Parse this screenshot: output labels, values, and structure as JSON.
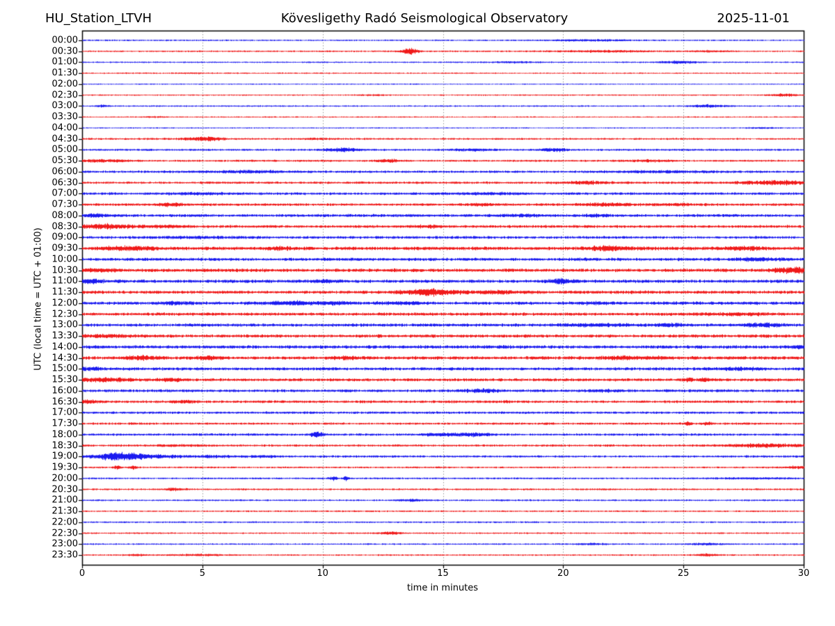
{
  "header": {
    "station": "HU_Station_LTVH",
    "observatory": "Kövesligethy Radó Seismological Observatory",
    "date": "2025-11-01"
  },
  "axes": {
    "ylabel": "UTC (local time = UTC + 01:00)",
    "xlabel": "time in minutes"
  },
  "colors": {
    "trace_blue": "#0000ee",
    "trace_red": "#ee0000",
    "grid": "#999999",
    "frame": "#000000",
    "text": "#000000",
    "background": "#ffffff"
  },
  "chart_data": {
    "type": "line",
    "subtype": "helicorder-seismogram",
    "title": "HU_Station_LTVH — Kövesligethy Radó Seismological Observatory — 2025-11-01",
    "xlabel": "time in minutes",
    "ylabel": "UTC (local time = UTC + 01:00)",
    "x_min": 0,
    "x_max": 30,
    "x_ticks": [
      0,
      5,
      10,
      15,
      20,
      25,
      30
    ],
    "minutes_per_line": 30,
    "grid": "vertical-dotted-at-5-min",
    "legend": "none",
    "line_colors_alternate": [
      "blue",
      "red"
    ],
    "events_format": "[start_minute, peak_amplitude_px, gaussian_width_min]",
    "rows": [
      {
        "label": "00:00",
        "color": "blue",
        "noise": 0.7,
        "events": [
          [
            21.0,
            0.9,
            1.2
          ]
        ]
      },
      {
        "label": "00:30",
        "color": "red",
        "noise": 0.75,
        "events": [
          [
            13.6,
            3.6,
            0.25
          ],
          [
            21.8,
            1.1,
            1.2
          ],
          [
            26.2,
            0.8,
            0.6
          ]
        ]
      },
      {
        "label": "01:00",
        "color": "blue",
        "noise": 0.7,
        "events": [
          [
            18.0,
            0.7,
            0.8
          ],
          [
            24.8,
            1.8,
            0.5
          ]
        ]
      },
      {
        "label": "01:30",
        "color": "red",
        "noise": 0.65,
        "events": [
          [
            4.5,
            0.5,
            0.5
          ]
        ]
      },
      {
        "label": "02:00",
        "color": "blue",
        "noise": 0.55,
        "events": []
      },
      {
        "label": "02:30",
        "color": "red",
        "noise": 0.65,
        "events": [
          [
            12.0,
            0.6,
            0.5
          ],
          [
            29.2,
            1.8,
            0.4
          ]
        ]
      },
      {
        "label": "03:00",
        "color": "blue",
        "noise": 0.7,
        "events": [
          [
            0.8,
            1.2,
            0.15
          ],
          [
            26.0,
            1.6,
            0.5
          ]
        ]
      },
      {
        "label": "03:30",
        "color": "red",
        "noise": 0.6,
        "events": [
          [
            3.0,
            0.8,
            0.3
          ]
        ]
      },
      {
        "label": "04:00",
        "color": "blue",
        "noise": 0.6,
        "events": [
          [
            28.3,
            0.8,
            0.4
          ]
        ]
      },
      {
        "label": "04:30",
        "color": "red",
        "noise": 0.85,
        "events": [
          [
            4.6,
            1.2,
            0.4
          ],
          [
            5.3,
            2.0,
            0.4
          ],
          [
            9.8,
            0.9,
            0.5
          ]
        ]
      },
      {
        "label": "05:00",
        "color": "blue",
        "noise": 0.95,
        "events": [
          [
            10.8,
            2.2,
            0.5
          ],
          [
            16.2,
            1.1,
            0.6
          ],
          [
            19.6,
            2.0,
            0.4
          ]
        ]
      },
      {
        "label": "05:30",
        "color": "red",
        "noise": 0.95,
        "events": [
          [
            0.8,
            1.4,
            0.8
          ],
          [
            12.7,
            1.9,
            0.3
          ],
          [
            23.5,
            1.0,
            0.8
          ]
        ]
      },
      {
        "label": "06:00",
        "color": "blue",
        "noise": 1.15,
        "events": [
          [
            7.0,
            0.9,
            1.5
          ],
          [
            24.0,
            0.9,
            1.5
          ]
        ]
      },
      {
        "label": "06:30",
        "color": "red",
        "noise": 1.15,
        "events": [
          [
            21.0,
            1.5,
            0.5
          ],
          [
            28.0,
            1.4,
            0.6
          ],
          [
            29.2,
            2.2,
            0.6
          ]
        ]
      },
      {
        "label": "07:00",
        "color": "blue",
        "noise": 1.25,
        "events": [
          [
            5.0,
            0.8,
            1.0
          ],
          [
            17.0,
            0.8,
            1.0
          ]
        ]
      },
      {
        "label": "07:30",
        "color": "red",
        "noise": 1.25,
        "events": [
          [
            3.7,
            1.6,
            0.4
          ],
          [
            16.6,
            1.0,
            0.5
          ],
          [
            21.8,
            1.6,
            0.6
          ],
          [
            24.8,
            1.0,
            0.5
          ]
        ]
      },
      {
        "label": "08:00",
        "color": "blue",
        "noise": 1.35,
        "events": [
          [
            0.6,
            1.5,
            0.4
          ],
          [
            18.3,
            1.1,
            0.6
          ],
          [
            21.3,
            1.1,
            0.5
          ]
        ]
      },
      {
        "label": "08:30",
        "color": "red",
        "noise": 1.35,
        "events": [
          [
            0.9,
            2.2,
            0.9
          ],
          [
            3.5,
            1.2,
            0.5
          ],
          [
            14.5,
            1.0,
            0.6
          ]
        ]
      },
      {
        "label": "09:00",
        "color": "blue",
        "noise": 1.35,
        "events": [
          [
            5.0,
            0.8,
            1.0
          ]
        ]
      },
      {
        "label": "09:30",
        "color": "red",
        "noise": 1.6,
        "events": [
          [
            1.9,
            2.0,
            0.8
          ],
          [
            8.3,
            1.2,
            0.5
          ],
          [
            21.8,
            2.0,
            0.7
          ],
          [
            27.5,
            1.8,
            0.6
          ]
        ]
      },
      {
        "label": "10:00",
        "color": "blue",
        "noise": 1.5,
        "events": [
          [
            28.0,
            1.6,
            0.5
          ]
        ]
      },
      {
        "label": "10:30",
        "color": "red",
        "noise": 1.6,
        "events": [
          [
            0.7,
            1.5,
            0.5
          ],
          [
            29.5,
            3.2,
            0.5
          ]
        ]
      },
      {
        "label": "11:00",
        "color": "blue",
        "noise": 1.6,
        "events": [
          [
            0.3,
            2.2,
            0.3
          ],
          [
            10.2,
            1.2,
            0.4
          ],
          [
            19.9,
            2.4,
            0.4
          ]
        ]
      },
      {
        "label": "11:30",
        "color": "red",
        "noise": 1.5,
        "events": [
          [
            14.5,
            3.8,
            0.8
          ],
          [
            17.2,
            1.3,
            0.6
          ]
        ]
      },
      {
        "label": "12:00",
        "color": "blue",
        "noise": 1.5,
        "events": [
          [
            3.8,
            1.4,
            0.4
          ],
          [
            8.7,
            1.8,
            0.7
          ],
          [
            10.5,
            1.2,
            0.5
          ],
          [
            13.4,
            1.3,
            0.6
          ],
          [
            21.2,
            1.1,
            0.5
          ]
        ]
      },
      {
        "label": "12:30",
        "color": "red",
        "noise": 1.5,
        "events": [
          [
            27.5,
            0.9,
            0.8
          ]
        ]
      },
      {
        "label": "13:00",
        "color": "blue",
        "noise": 1.5,
        "events": [
          [
            21.5,
            1.1,
            0.8
          ],
          [
            24.5,
            1.1,
            0.6
          ],
          [
            28.3,
            1.8,
            0.6
          ]
        ]
      },
      {
        "label": "13:30",
        "color": "red",
        "noise": 1.5,
        "events": [
          [
            1.0,
            1.2,
            1.0
          ]
        ]
      },
      {
        "label": "14:00",
        "color": "blue",
        "noise": 1.6,
        "events": [
          [
            29.7,
            1.6,
            0.3
          ]
        ]
      },
      {
        "label": "14:30",
        "color": "red",
        "noise": 1.6,
        "events": [
          [
            2.5,
            2.0,
            0.5
          ],
          [
            5.3,
            1.3,
            0.4
          ],
          [
            11.0,
            1.2,
            0.5
          ],
          [
            22.4,
            1.8,
            0.5
          ],
          [
            24.0,
            1.2,
            0.4
          ]
        ]
      },
      {
        "label": "15:00",
        "color": "blue",
        "noise": 1.5,
        "events": [
          [
            0.4,
            1.8,
            0.3
          ],
          [
            27.3,
            1.3,
            0.6
          ]
        ]
      },
      {
        "label": "15:30",
        "color": "red",
        "noise": 1.4,
        "events": [
          [
            0.9,
            2.0,
            0.9
          ],
          [
            3.7,
            1.3,
            0.4
          ],
          [
            25.2,
            2.4,
            0.12
          ],
          [
            25.8,
            2.0,
            0.12
          ]
        ]
      },
      {
        "label": "16:00",
        "color": "blue",
        "noise": 1.3,
        "events": [
          [
            16.6,
            1.8,
            0.5
          ],
          [
            21.8,
            1.1,
            0.5
          ]
        ]
      },
      {
        "label": "16:30",
        "color": "red",
        "noise": 1.25,
        "events": [
          [
            0.3,
            1.4,
            0.3
          ],
          [
            4.2,
            1.2,
            0.4
          ]
        ]
      },
      {
        "label": "17:00",
        "color": "blue",
        "noise": 1.15,
        "events": []
      },
      {
        "label": "17:30",
        "color": "red",
        "noise": 1.05,
        "events": [
          [
            25.2,
            2.4,
            0.1
          ],
          [
            26.0,
            1.6,
            0.15
          ]
        ]
      },
      {
        "label": "18:00",
        "color": "blue",
        "noise": 1.15,
        "events": [
          [
            9.75,
            3.4,
            0.18
          ],
          [
            14.8,
            1.3,
            0.5
          ],
          [
            16.2,
            1.7,
            0.6
          ]
        ]
      },
      {
        "label": "18:30",
        "color": "red",
        "noise": 1.05,
        "events": [
          [
            4.0,
            0.8,
            0.8
          ],
          [
            28.5,
            1.8,
            1.2
          ]
        ]
      },
      {
        "label": "19:00",
        "color": "blue",
        "noise": 1.05,
        "events": [
          [
            1.2,
            3.4,
            0.6
          ],
          [
            2.0,
            2.6,
            0.5
          ],
          [
            3.2,
            1.4,
            0.8
          ],
          [
            5.5,
            1.0,
            0.5
          ],
          [
            7.5,
            0.9,
            0.5
          ]
        ]
      },
      {
        "label": "19:30",
        "color": "red",
        "noise": 0.85,
        "events": [
          [
            1.45,
            2.4,
            0.1
          ],
          [
            2.1,
            1.8,
            0.1
          ],
          [
            29.6,
            1.4,
            0.3
          ]
        ]
      },
      {
        "label": "20:00",
        "color": "blue",
        "noise": 0.85,
        "events": [
          [
            10.45,
            3.0,
            0.09
          ],
          [
            10.95,
            2.5,
            0.09
          ],
          [
            27.5,
            0.6,
            1.5
          ]
        ]
      },
      {
        "label": "20:30",
        "color": "red",
        "noise": 0.85,
        "events": [
          [
            3.8,
            1.4,
            0.3
          ]
        ]
      },
      {
        "label": "21:00",
        "color": "blue",
        "noise": 0.8,
        "events": [
          [
            13.7,
            1.2,
            0.4
          ]
        ]
      },
      {
        "label": "21:30",
        "color": "red",
        "noise": 0.75,
        "events": []
      },
      {
        "label": "22:00",
        "color": "blue",
        "noise": 0.75,
        "events": []
      },
      {
        "label": "22:30",
        "color": "red",
        "noise": 0.75,
        "events": [
          [
            12.8,
            1.8,
            0.3
          ]
        ]
      },
      {
        "label": "23:00",
        "color": "blue",
        "noise": 0.75,
        "events": [
          [
            21.2,
            1.0,
            0.4
          ],
          [
            26.0,
            1.0,
            0.4
          ]
        ]
      },
      {
        "label": "23:30",
        "color": "red",
        "noise": 0.75,
        "events": [
          [
            2.2,
            0.9,
            0.3
          ],
          [
            4.8,
            0.9,
            0.8
          ],
          [
            26.0,
            1.4,
            0.3
          ]
        ]
      }
    ]
  }
}
